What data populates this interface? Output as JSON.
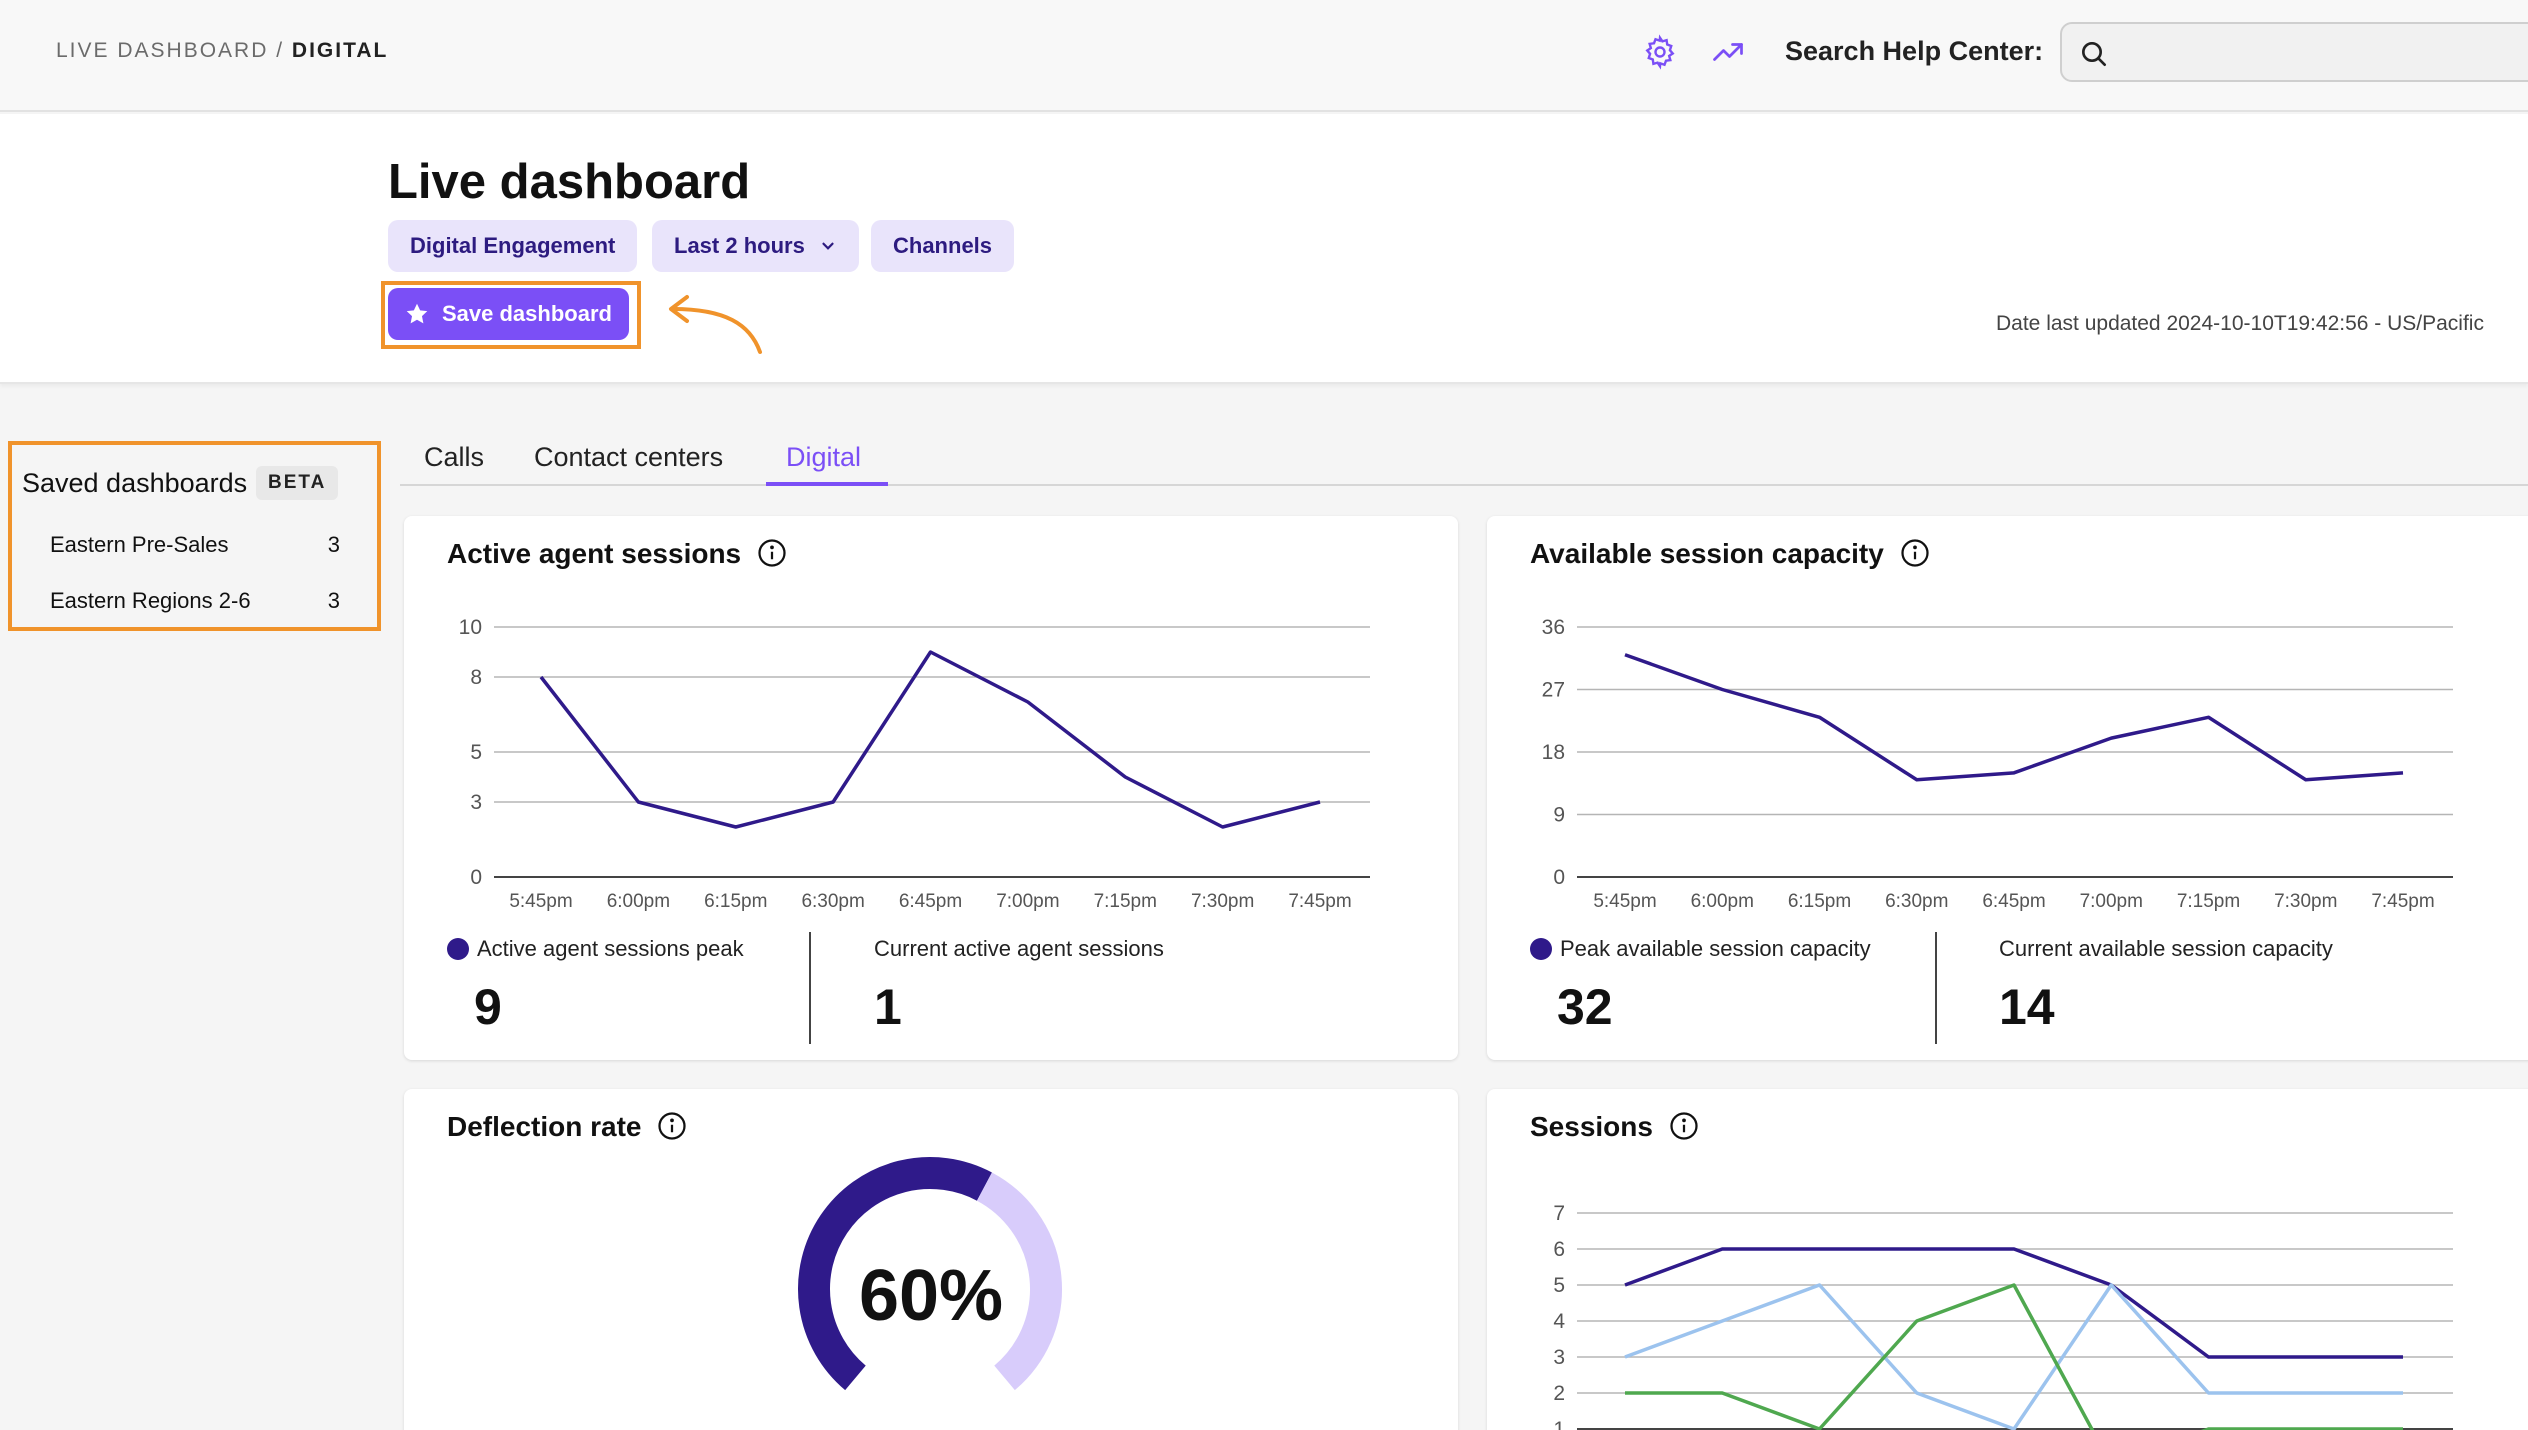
{
  "topbar": {
    "breadcrumb_section": "LIVE DASHBOARD",
    "breadcrumb_sep": "/",
    "breadcrumb_current": "DIGITAL",
    "icons": [
      "gear-icon",
      "trend-icon",
      "search-icon"
    ],
    "help_label": "Search Help Center:",
    "search_value": ""
  },
  "header": {
    "title": "Live dashboard",
    "pills": [
      "Digital Engagement",
      "Last 2 hours",
      "Channels"
    ],
    "save_label": "Save dashboard",
    "updated": "Date last updated 2024-10-10T19:42:56 - US/Pacific"
  },
  "saved": {
    "title": "Saved dashboards",
    "badge": "BETA",
    "items": [
      {
        "label": "Eastern Pre-Sales",
        "count": "3"
      },
      {
        "label": "Eastern Regions 2-6",
        "count": "3"
      }
    ]
  },
  "tabs": [
    "Calls",
    "Contact centers",
    "Digital"
  ],
  "active_tab": "Digital",
  "colors": {
    "accent": "#7b4ff6",
    "series_dark": "#2f1a8a",
    "series_light_blue": "#9cc3ee",
    "series_green": "#4fa84f",
    "gauge_light": "#d8ccfb",
    "annotation_orange": "#f0932b"
  },
  "cards": {
    "active_agents": {
      "title": "Active agent sessions",
      "peak_label": "Active agent sessions peak",
      "peak_value": "9",
      "current_label": "Current active agent sessions",
      "current_value": "1"
    },
    "capacity": {
      "title": "Available session capacity",
      "peak_label": "Peak available session capacity",
      "peak_value": "32",
      "current_label": "Current available session capacity",
      "current_value": "14"
    },
    "deflection": {
      "title": "Deflection rate",
      "value_label": "60%"
    },
    "sessions": {
      "title": "Sessions"
    }
  },
  "chart_data": [
    {
      "type": "line",
      "title": "Active agent sessions",
      "x": [
        "5:45pm",
        "6:00pm",
        "6:15pm",
        "6:30pm",
        "6:45pm",
        "7:00pm",
        "7:15pm",
        "7:30pm",
        "7:45pm"
      ],
      "yticks": [
        0,
        3,
        5,
        8,
        10
      ],
      "ylim": [
        0,
        10
      ],
      "grid": true,
      "series": [
        {
          "values": [
            8,
            3,
            2,
            3,
            9,
            7,
            4,
            2,
            3
          ]
        }
      ]
    },
    {
      "type": "line",
      "title": "Available session capacity",
      "x": [
        "5:45pm",
        "6:00pm",
        "6:15pm",
        "6:30pm",
        "6:45pm",
        "7:00pm",
        "7:15pm",
        "7:30pm",
        "7:45pm"
      ],
      "yticks": [
        0,
        9,
        18,
        27,
        36
      ],
      "ylim": [
        0,
        36
      ],
      "grid": true,
      "series": [
        {
          "values": [
            32,
            27,
            23,
            14,
            15,
            20,
            23,
            14,
            15
          ]
        }
      ]
    },
    {
      "type": "pie",
      "title": "Deflection rate",
      "values": [
        60,
        40
      ],
      "center_label": "60%"
    },
    {
      "type": "line",
      "title": "Sessions",
      "yticks": [
        1,
        2,
        3,
        4,
        5,
        6,
        7
      ],
      "ylim": [
        1,
        7
      ],
      "grid": true,
      "series": [
        {
          "values": [
            5,
            6,
            6,
            6,
            6,
            5,
            3,
            3,
            3
          ]
        },
        {
          "values": [
            3,
            4,
            5,
            2,
            1,
            5,
            2,
            2,
            2
          ]
        },
        {
          "values": [
            2,
            2,
            1,
            4,
            5,
            0,
            1,
            1,
            1
          ]
        }
      ]
    }
  ]
}
